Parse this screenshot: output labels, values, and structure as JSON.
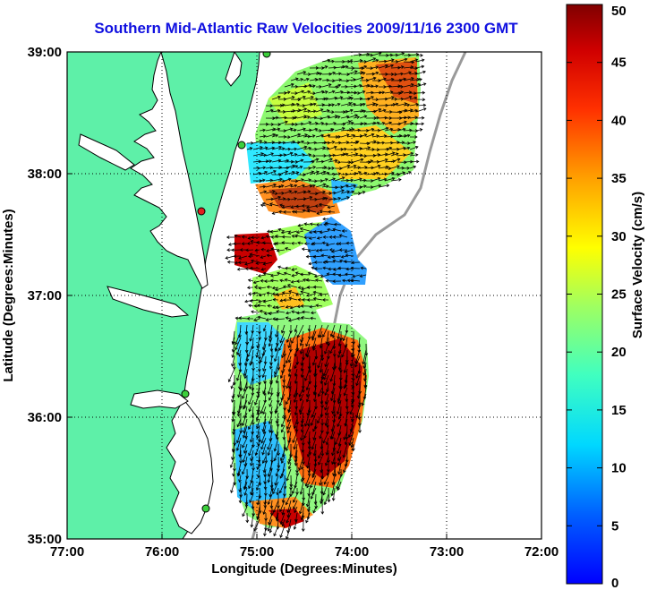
{
  "title": "Southern Mid-Atlantic Raw Velocities 2009/11/16 2300 GMT",
  "xlabel": "Longitude (Degrees:Minutes)",
  "ylabel": "Latitude (Degrees:Minutes)",
  "xticks": [
    "77:00",
    "76:00",
    "75:00",
    "74:00",
    "73:00",
    "72:00"
  ],
  "xtick_values": [
    -77,
    -76,
    -75,
    -74,
    -73,
    -72
  ],
  "yticks": [
    "39:00",
    "38:00",
    "37:00",
    "36:00",
    "35:00"
  ],
  "ytick_values": [
    39,
    38,
    37,
    36,
    35
  ],
  "colorbar": {
    "label": "Surface Velocity (cm/s)",
    "min": 0,
    "max": 50,
    "ticks": [
      "50",
      "45",
      "40",
      "35",
      "30",
      "25",
      "20",
      "15",
      "10",
      "5",
      "0"
    ],
    "colormap": "jet"
  },
  "colors": {
    "title": "#1010e0",
    "land": "#5ef0a8",
    "coast": "#000000",
    "grid": "#000000",
    "stations": "#3ccf3c",
    "station_alert": "#e02020",
    "bathymetry": "#9a9a9a"
  },
  "grid": true,
  "xlim": [
    -77,
    -72
  ],
  "ylim": [
    35,
    39
  ]
}
